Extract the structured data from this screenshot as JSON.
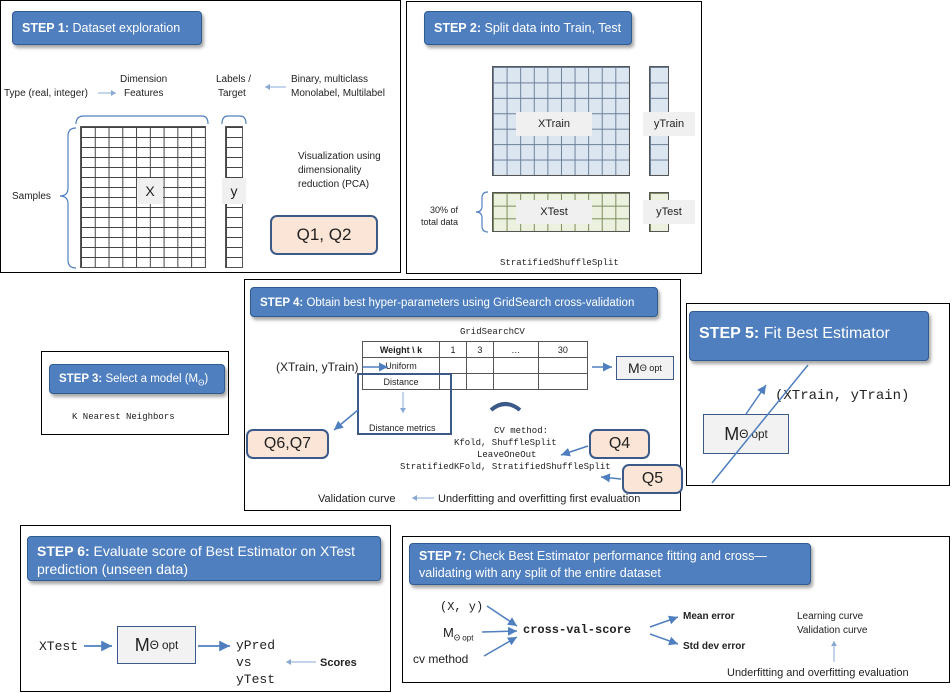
{
  "step1": {
    "title_strong": "STEP 1:",
    "title_rest": " Dataset exploration",
    "type_label": "Type (real, integer)",
    "dimension_label": "Dimension",
    "features_label": "Features",
    "labels_label": "Labels /",
    "target_label": "Target",
    "binary_label": "Binary, multiclass",
    "monolabel_label": "Monolabel, Multilabel",
    "samples_label": "Samples",
    "x_label": "X",
    "y_label": "y",
    "viz_line1": "Visualization using",
    "viz_line2": "dimensionality",
    "viz_line3": "reduction (PCA)",
    "question": "Q1, Q2"
  },
  "step2": {
    "title_strong": "STEP 2:",
    "title_rest": " Split data into Train, Test",
    "xtrain": "XTrain",
    "ytrain": "yTrain",
    "xtest": "XTest",
    "ytest": "yTest",
    "pct_line1": "30% of",
    "pct_line2": "total data",
    "splitter": "StratifiedShuffleSplit"
  },
  "step3": {
    "title_strong": "STEP 3:",
    "title_rest": " Select a model (M",
    "title_sub": "Θ",
    "title_end": ")",
    "model": "K Nearest Neighbors"
  },
  "step4": {
    "title_strong": "STEP 4:",
    "title_rest": " Obtain best hyper-parameters using GridSearch cross-validation",
    "gridsearch": "GridSearchCV",
    "input": "(XTrain, yTrain)",
    "table_header": [
      "Weight  \\  k",
      "1",
      "3",
      "…",
      "30"
    ],
    "row_labels": [
      "Uniform",
      "Distance"
    ],
    "distance_metrics": "Distance metrics",
    "m_main": "M",
    "m_sub": "Θ opt",
    "cv_method": "CV method:",
    "cv_line1": "Kfold, ShuffleSplit",
    "cv_line2": "LeaveOneOut",
    "cv_line3": "StratifiedKFold, StratifiedShuffleSplit",
    "q67": "Q6,Q7",
    "q4": "Q4",
    "q5": "Q5",
    "validation_curve": "Validation curve",
    "underfit": "Underfitting and overfitting first evaluation"
  },
  "step5": {
    "title_strong": "STEP 5:",
    "title_rest": " Fit Best Estimator",
    "input": "(XTrain, yTrain)",
    "m_main": "M",
    "m_sub": "Θ opt"
  },
  "step6": {
    "title_strong": "STEP 6:",
    "title_rest": " Evaluate score of Best Estimator on XTest prediction (unseen data)",
    "xtest": "XTest",
    "m_main": "M",
    "m_sub": "Θ opt",
    "ypred": "yPred",
    "vs": "vs",
    "ytest": "yTest",
    "scores": "Scores"
  },
  "step7": {
    "title_strong": "STEP 7:",
    "title_rest": " Check Best Estimator performance fitting and cross—validating with any split of the entire dataset",
    "xy": "(X, y)",
    "m_main": "M",
    "m_sub": "Θ opt",
    "cv_method": "cv method",
    "cvs": "cross-val-score",
    "mean_error": "Mean error",
    "std_error": "Std dev error",
    "learning_curve": "Learning curve",
    "validation_curve": "Validation curve",
    "evaluation": "Underfitting and overfitting evaluation"
  },
  "colors": {
    "step_header": "#4f7fbf",
    "question_fill": "#fbe5d6",
    "question_border": "#3b5a8a",
    "train_grid": "#dce6f1",
    "test_grid": "#ebf1de",
    "arrow": "#4f7fbf"
  }
}
